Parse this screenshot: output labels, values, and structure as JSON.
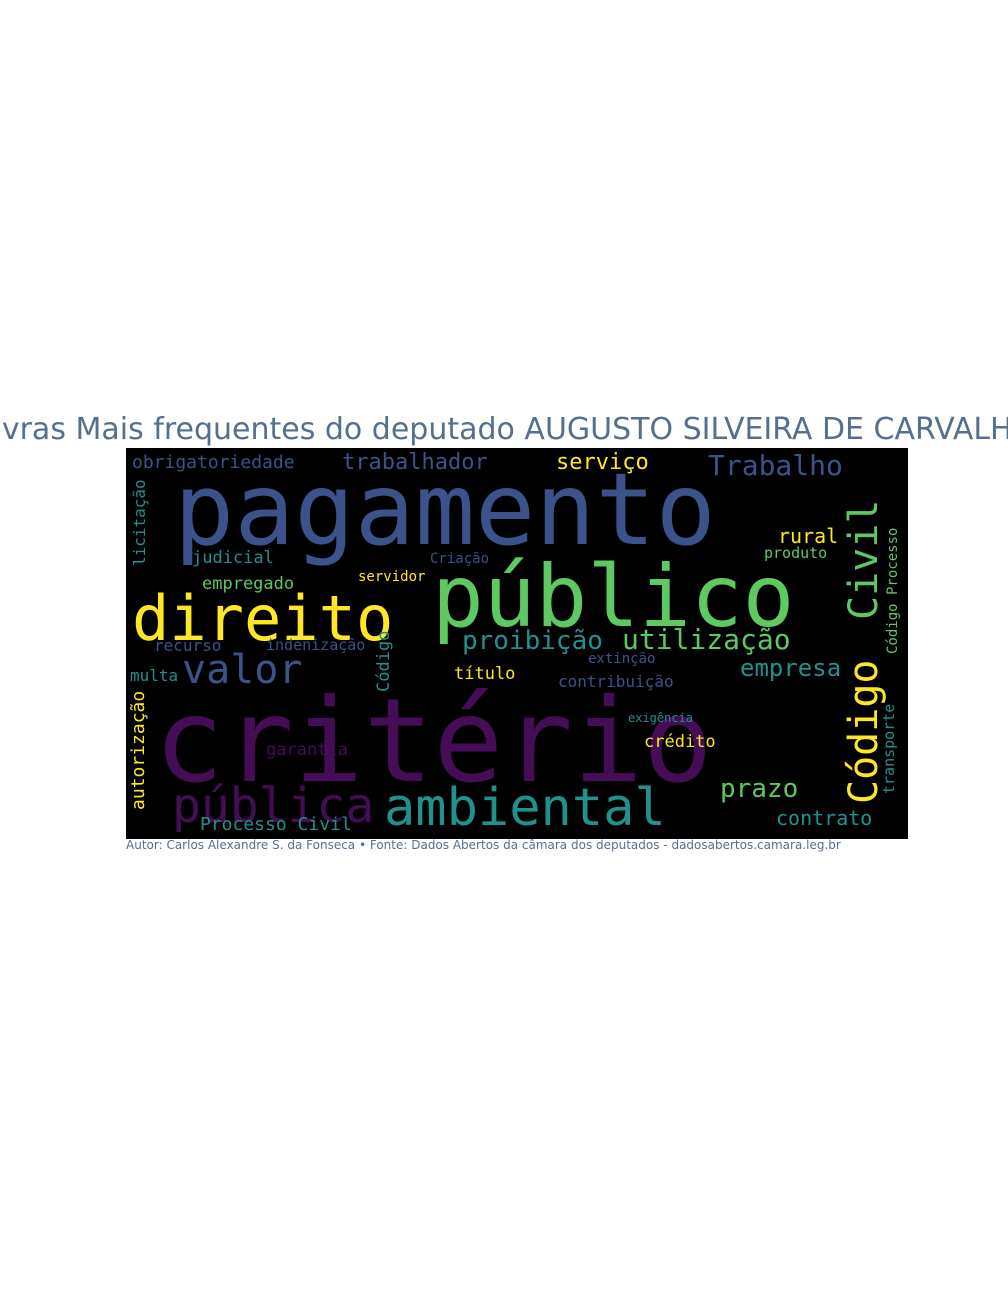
{
  "title": "Palavras Mais frequentes do deputado AUGUSTO SILVEIRA DE CARVALHO",
  "caption": "Autor: Carlos Alexandre S. da Fonseca • Fonte: Dados Abertos da câmara dos deputados - dadosabertos.camara.leg.br",
  "palette": {
    "purple": "#440d55",
    "indigo": "#3b528b",
    "teal": "#21918c",
    "green": "#5ec962",
    "yellow": "#fde725"
  },
  "words": [
    {
      "text": "critério",
      "color": "#440d55"
    },
    {
      "text": "pagamento",
      "color": "#3b528b"
    },
    {
      "text": "público",
      "color": "#5ec962"
    },
    {
      "text": "direito",
      "color": "#fde725"
    },
    {
      "text": "ambiental",
      "color": "#21918c"
    },
    {
      "text": "pública",
      "color": "#440d55"
    },
    {
      "text": "valor",
      "color": "#3b528b"
    },
    {
      "text": "Código",
      "color": "#fde725"
    },
    {
      "text": "Civil",
      "color": "#5ec962"
    },
    {
      "text": "Trabalho",
      "color": "#3b528b"
    },
    {
      "text": "trabalhador",
      "color": "#3b528b"
    },
    {
      "text": "obrigatoriedade",
      "color": "#3b528b"
    },
    {
      "text": "serviço",
      "color": "#fde725"
    },
    {
      "text": "utilização",
      "color": "#5ec962"
    },
    {
      "text": "proibição",
      "color": "#21918c"
    },
    {
      "text": "prazo",
      "color": "#5ec962"
    },
    {
      "text": "empresa",
      "color": "#21918c"
    },
    {
      "text": "contrato",
      "color": "#21918c"
    },
    {
      "text": "crédito",
      "color": "#fde725"
    },
    {
      "text": "garantia",
      "color": "#440d55"
    },
    {
      "text": "Processo Civil",
      "color": "#21918c"
    },
    {
      "text": "autorização",
      "color": "#fde725"
    },
    {
      "text": "licitação",
      "color": "#21918c"
    },
    {
      "text": "judicial",
      "color": "#21918c"
    },
    {
      "text": "empregado",
      "color": "#5ec962"
    },
    {
      "text": "recurso",
      "color": "#3b528b"
    },
    {
      "text": "indenização",
      "color": "#3b528b"
    },
    {
      "text": "multa",
      "color": "#21918c"
    },
    {
      "text": "título",
      "color": "#fde725"
    },
    {
      "text": "contribuição",
      "color": "#3b528b"
    },
    {
      "text": "extinção",
      "color": "#3b528b"
    },
    {
      "text": "servidor",
      "color": "#fde725"
    },
    {
      "text": "Criação",
      "color": "#3b528b"
    },
    {
      "text": "rural",
      "color": "#fde725"
    },
    {
      "text": "produto",
      "color": "#5ec962"
    },
    {
      "text": "Código",
      "color": "#21918c"
    },
    {
      "text": "transporte",
      "color": "#21918c"
    },
    {
      "text": "Código Processo",
      "color": "#5ec962"
    },
    {
      "text": "exigência",
      "color": "#21918c"
    }
  ]
}
